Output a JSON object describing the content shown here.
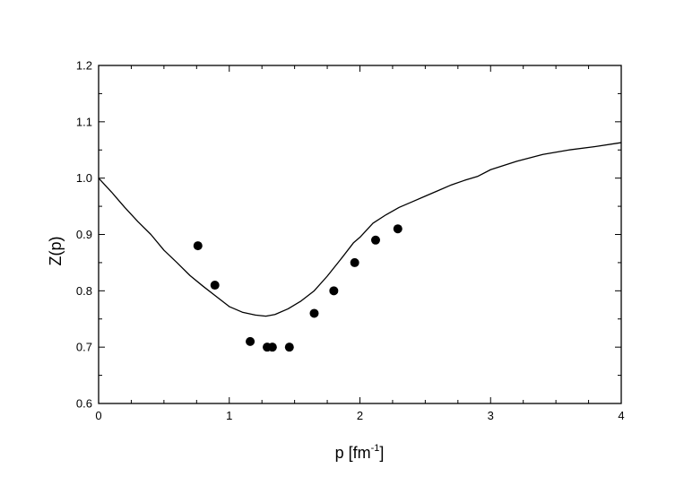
{
  "chart_data": {
    "type": "scatter",
    "title": "",
    "xlabel": "p [fm",
    "xlabel_sup": "-1",
    "xlabel_close": "]",
    "ylabel": "Z(p)",
    "xlim": [
      0,
      4
    ],
    "ylim": [
      0.6,
      1.2
    ],
    "grid": false,
    "x_ticks": [
      0,
      1,
      2,
      3,
      4
    ],
    "x_tick_labels": [
      "0",
      "1",
      "2",
      "3",
      "4"
    ],
    "y_ticks": [
      0.6,
      0.7,
      0.8,
      0.9,
      1.0,
      1.1,
      1.2
    ],
    "y_tick_labels": [
      "0.6",
      "0.7",
      "0.8",
      "0.9",
      "1.0",
      "1.1",
      "1.2"
    ],
    "series": [
      {
        "kind": "line",
        "color": "#000000",
        "x": [
          0,
          0.1,
          0.2,
          0.3,
          0.4,
          0.5,
          0.6,
          0.7,
          0.8,
          0.9,
          1.0,
          1.1,
          1.2,
          1.28,
          1.35,
          1.45,
          1.55,
          1.65,
          1.75,
          1.85,
          1.95,
          2.0,
          2.1,
          2.2,
          2.3,
          2.4,
          2.5,
          2.6,
          2.7,
          2.8,
          2.9,
          3.0,
          3.2,
          3.4,
          3.6,
          3.8,
          4.0
        ],
        "y": [
          1.0,
          0.975,
          0.948,
          0.923,
          0.9,
          0.872,
          0.85,
          0.827,
          0.808,
          0.79,
          0.772,
          0.762,
          0.757,
          0.755,
          0.758,
          0.768,
          0.782,
          0.8,
          0.826,
          0.855,
          0.885,
          0.895,
          0.92,
          0.935,
          0.948,
          0.958,
          0.968,
          0.978,
          0.988,
          0.996,
          1.003,
          1.015,
          1.03,
          1.042,
          1.05,
          1.056,
          1.063
        ]
      },
      {
        "kind": "scatter",
        "color": "#000000",
        "x": [
          0.76,
          0.89,
          1.16,
          1.29,
          1.33,
          1.46,
          1.65,
          1.8,
          1.96,
          2.12,
          2.29
        ],
        "y": [
          0.88,
          0.81,
          0.71,
          0.7,
          0.7,
          0.7,
          0.76,
          0.8,
          0.85,
          0.89,
          0.91
        ]
      }
    ]
  }
}
